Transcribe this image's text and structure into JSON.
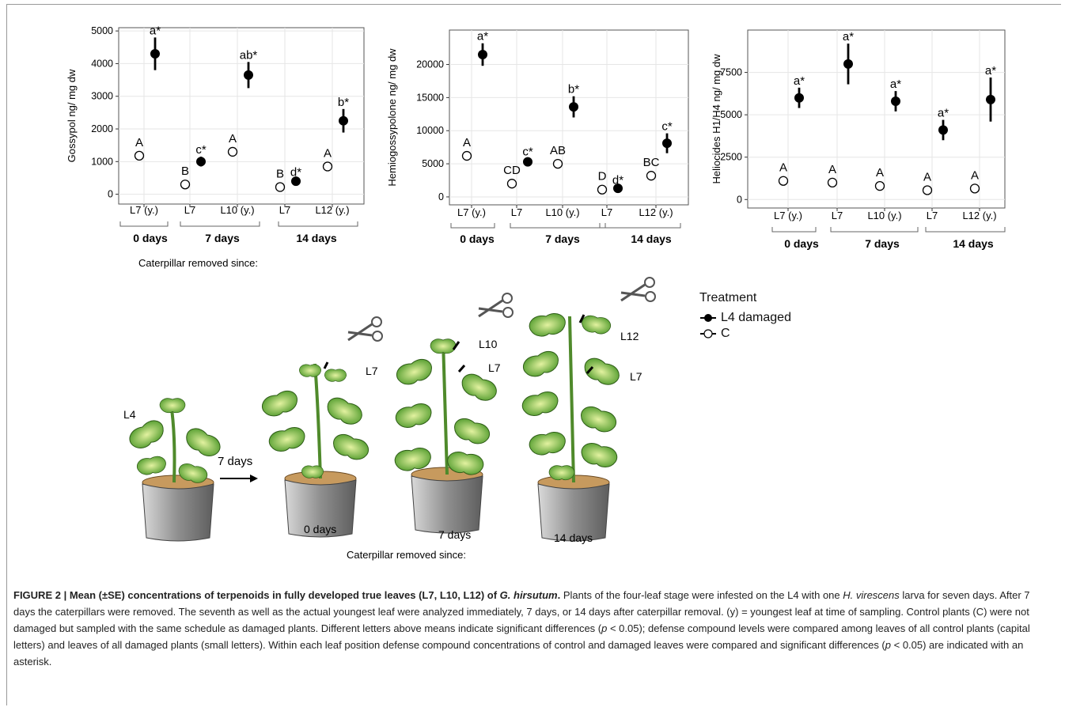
{
  "charts": [
    {
      "ylabel": "Gossypol ng/ mg dw",
      "yticks": [
        0,
        1000,
        2000,
        3000,
        4000,
        5000
      ],
      "ylim": [
        -300,
        5100
      ],
      "categories": [
        "L7 (y.)",
        "L7",
        "L10 (y.)",
        "L7",
        "L12 (y.)"
      ],
      "groups": [
        "0 days",
        "7 days",
        "14 days"
      ],
      "xlabel": "Caterpillar removed since:",
      "control": [
        1180,
        300,
        1300,
        220,
        850
      ],
      "control_err": [
        0,
        0,
        0,
        0,
        0
      ],
      "control_labels": [
        "A",
        "B",
        "A",
        "B",
        "A"
      ],
      "damaged": [
        4300,
        1000,
        3650,
        400,
        2250
      ],
      "damaged_err": [
        500,
        150,
        400,
        60,
        360
      ],
      "damaged_labels": [
        "a*",
        "c*",
        "ab*",
        "d*",
        "b*"
      ]
    },
    {
      "ylabel": "Hemiogossypolone ng/ mg dw",
      "yticks": [
        0,
        5000,
        10000,
        15000,
        20000
      ],
      "ylim": [
        -1200,
        25200
      ],
      "categories": [
        "L7 (y.)",
        "L7",
        "L10 (y.)",
        "L7",
        "L12 (y.)"
      ],
      "groups": [
        "0 days",
        "7 days",
        "14 days"
      ],
      "xlabel": "",
      "control": [
        6200,
        2000,
        5000,
        1100,
        3200
      ],
      "control_err": [
        0,
        0,
        0,
        0,
        0
      ],
      "control_labels": [
        "A",
        "CD",
        "AB",
        "D",
        "BC"
      ],
      "damaged": [
        21500,
        5300,
        13600,
        1300,
        8100
      ],
      "damaged_err": [
        1700,
        500,
        1600,
        200,
        1500
      ],
      "damaged_labels": [
        "a*",
        "c*",
        "b*",
        "d*",
        "c*"
      ]
    },
    {
      "ylabel": "Heliocides H1/H4 ng/ mg dw",
      "yticks": [
        0,
        2500,
        5000,
        7500
      ],
      "ylim": [
        -500,
        10000
      ],
      "categories": [
        "L7 (y.)",
        "L7",
        "L10 (y.)",
        "L7",
        "L12 (y.)"
      ],
      "groups": [
        "0 days",
        "7 days",
        "14 days"
      ],
      "xlabel": "",
      "control": [
        1100,
        1000,
        800,
        550,
        650
      ],
      "control_err": [
        0,
        0,
        0,
        0,
        0
      ],
      "control_labels": [
        "A",
        "A",
        "A",
        "A",
        "A"
      ],
      "damaged": [
        6000,
        8000,
        5800,
        4100,
        5900
      ],
      "damaged_err": [
        600,
        1200,
        600,
        600,
        1300
      ],
      "damaged_labels": [
        "a*",
        "a*",
        "a*",
        "a*",
        "a*"
      ]
    }
  ],
  "legend": {
    "title": "Treatment",
    "damaged": "L4 damaged",
    "control": "C"
  },
  "illustration": {
    "leaf_l4": "L4",
    "arrow_label": "7 days",
    "plant1_leaf": "L7",
    "plant2_leaf_top": "L10",
    "plant2_leaf_mid": "L7",
    "plant3_leaf_top": "L12",
    "plant3_leaf_mid": "L7",
    "pot1_label": "0 days",
    "pot2_label": "7 days",
    "pot3_label": "14 days",
    "bottom_label": "Caterpillar removed since:"
  },
  "caption": {
    "bold": "FIGURE 2 | Mean (±SE) concentrations of terpenoids in fully developed true leaves (L7, L10, L12) of ",
    "bold_italic": "G. hirsutum",
    "bold_end": ".",
    "p1": " Plants of the four-leaf stage were infested on the L4 with one ",
    "i1": "H. virescens",
    "p2": " larva for seven days. After 7 days the caterpillars were removed. The seventh as well as the actual youngest leaf were analyzed immediately, 7 days, or 14 days after caterpillar removal. (y) = youngest leaf at time of sampling. Control plants (C) were not damaged but sampled with the same schedule as damaged plants. Different letters above means indicate significant differences (",
    "i2": "p",
    "p3": " < 0.05); defense compound levels were compared among leaves of all control plants (capital letters) and leaves of all damaged plants (small letters). Within each leaf position defense compound concentrations of control and damaged leaves were compared and significant differences (",
    "i3": "p",
    "p4": " < 0.05) are indicated with an asterisk."
  },
  "colors": {
    "damaged": "#000000",
    "control": "#ffffff",
    "grid": "#e6e6e6",
    "leaf": "#8cc63f",
    "pot": "#9a9a9a",
    "soil": "#b58950"
  }
}
